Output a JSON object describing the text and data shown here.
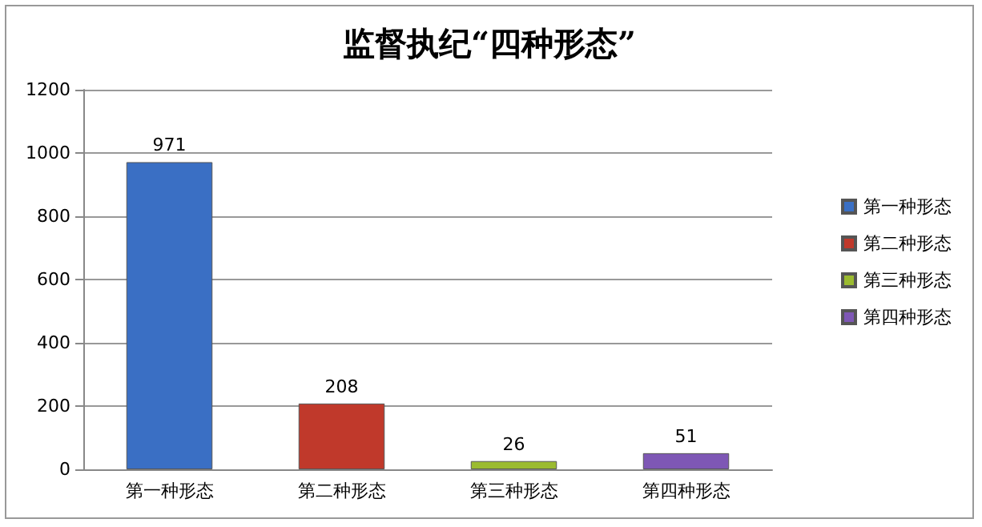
{
  "chart_data": {
    "type": "bar",
    "title": "监督执纪“四种形态”",
    "categories": [
      "第一种形态",
      "第二种形态",
      "第三种形态",
      "第四种形态"
    ],
    "series": [
      {
        "name": "第一种形态",
        "color": "#3a6fc4",
        "values": [
          971,
          null,
          null,
          null
        ]
      },
      {
        "name": "第二种形态",
        "color": "#c0392b",
        "values": [
          null,
          208,
          null,
          null
        ]
      },
      {
        "name": "第三种形态",
        "color": "#9bbb30",
        "values": [
          null,
          null,
          26,
          null
        ]
      },
      {
        "name": "第四种形态",
        "color": "#7e57b5",
        "values": [
          null,
          null,
          null,
          51
        ]
      }
    ],
    "ylim": [
      0,
      1200
    ],
    "yticks": [
      0,
      200,
      400,
      600,
      800,
      1000,
      1200
    ],
    "grid": "y",
    "legend": "right",
    "data_labels": true
  }
}
